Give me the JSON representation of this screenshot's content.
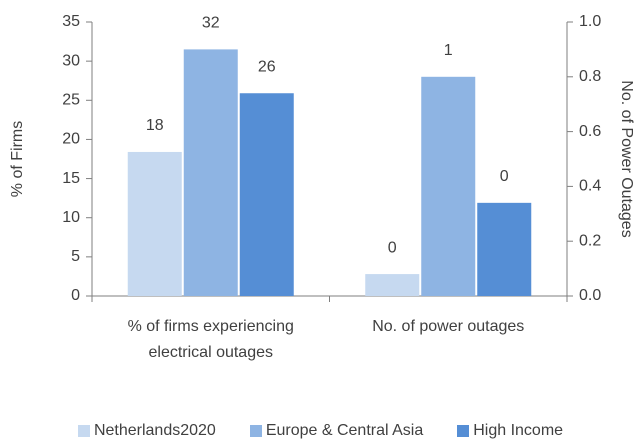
{
  "chart_data": {
    "type": "bar",
    "categories": [
      "% of firms experiencing electrical outages",
      "No. of power outages"
    ],
    "category_axis": [
      "y",
      "y2"
    ],
    "series": [
      {
        "name": "Netherlands2020",
        "color": "#c6d9f0",
        "values": [
          18.4,
          0.08
        ],
        "value_labels": [
          "18",
          "0"
        ]
      },
      {
        "name": "Europe & Central Asia",
        "color": "#8eb4e3",
        "values": [
          31.5,
          0.8
        ],
        "value_labels": [
          "32",
          "1"
        ]
      },
      {
        "name": "High Income",
        "color": "#558ed5",
        "values": [
          25.9,
          0.34
        ],
        "value_labels": [
          "26",
          "0"
        ]
      }
    ],
    "ylabel": "% of Firms",
    "y2label": "No. of Power Outages",
    "ylim": [
      0,
      35
    ],
    "yticks": [
      0,
      5,
      10,
      15,
      20,
      25,
      30,
      35
    ],
    "y2lim": [
      0,
      1
    ],
    "y2ticks": [
      {
        "value": 0,
        "label": "0.0"
      },
      0.2,
      0.4,
      0.6,
      0.8,
      {
        "value": 1,
        "label": "1.0"
      }
    ],
    "grid": false,
    "legend": "bottom"
  }
}
